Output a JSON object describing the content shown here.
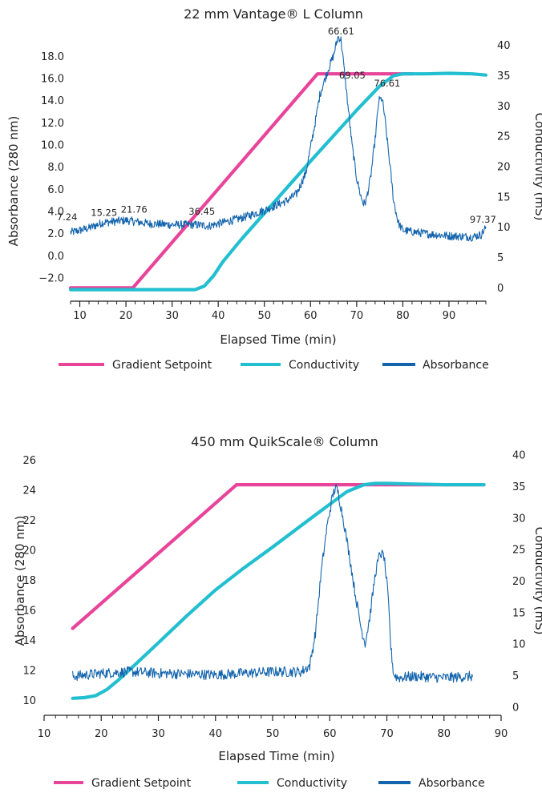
{
  "legend": {
    "gradient": "Gradient Setpoint",
    "conductivity": "Conductivity",
    "absorbance": "Absorbance"
  },
  "colors": {
    "gradient": "#e8449a",
    "conductivity": "#22bfd0",
    "absorbance": "#1464ad"
  },
  "chart_data": [
    {
      "type": "line",
      "title": "22 mm Vantage® L Column",
      "xlabel": "Elapsed Time (min)",
      "ylabel": "Absorbance (280 nm)",
      "y2label": "Conductivity (mS)",
      "xlim": [
        8,
        98
      ],
      "ylim": [
        -4.1,
        20.2
      ],
      "y2lim": [
        -2.2,
        42.2
      ],
      "xticks": [
        "10",
        "20",
        "30",
        "40",
        "50",
        "60",
        "70",
        "80",
        "90"
      ],
      "xtick_values": [
        10,
        20,
        30,
        40,
        50,
        60,
        70,
        80,
        90
      ],
      "yticks": [
        "−2.0",
        "0.0",
        "2.0",
        "4.0",
        "6.0",
        "8.0",
        "10.0",
        "12.0",
        "14.0",
        "16.0",
        "18.0"
      ],
      "ytick_values": [
        -2,
        0,
        2,
        4,
        6,
        8,
        10,
        12,
        14,
        16,
        18
      ],
      "y2ticks": [
        "0",
        "5",
        "10",
        "15",
        "20",
        "25",
        "30",
        "35",
        "40"
      ],
      "y2tick_values": [
        0,
        5,
        10,
        15,
        20,
        25,
        30,
        35,
        40
      ],
      "annotations": [
        {
          "text": "7.24",
          "x": 7.24,
          "y": 3.2
        },
        {
          "text": "15.25",
          "x": 15.25,
          "y": 3.6
        },
        {
          "text": "21.76",
          "x": 21.76,
          "y": 3.9
        },
        {
          "text": "36.45",
          "x": 36.45,
          "y": 3.7
        },
        {
          "text": "66.61",
          "x": 66.61,
          "y": 20.0
        },
        {
          "text": "69.05",
          "x": 69.05,
          "y": 16.0
        },
        {
          "text": "76.61",
          "x": 76.61,
          "y": 15.3
        },
        {
          "text": "97.37",
          "x": 97.37,
          "y": 3.0
        }
      ],
      "series": [
        {
          "name": "Gradient Setpoint",
          "axis": "y2",
          "color_key": "gradient",
          "x": [
            8,
            21.5,
            61.5,
            82
          ],
          "y": [
            0,
            0,
            35.3,
            35.3
          ]
        },
        {
          "name": "Conductivity",
          "axis": "y2",
          "color_key": "conductivity",
          "x": [
            8,
            35,
            37,
            39,
            41,
            45,
            50,
            55,
            60,
            65,
            70,
            75,
            78,
            80,
            82,
            85,
            90,
            95,
            98
          ],
          "y": [
            -0.3,
            -0.3,
            0.3,
            2.0,
            4.3,
            8.0,
            12.3,
            16.6,
            20.9,
            25.1,
            29.3,
            33.3,
            35.0,
            35.3,
            35.3,
            35.3,
            35.4,
            35.3,
            35.1
          ]
        },
        {
          "name": "Absorbance",
          "axis": "y",
          "color_key": "absorbance",
          "noise": 0.38,
          "x": [
            8,
            12,
            15,
            20,
            25,
            30,
            35,
            38,
            40,
            45,
            50,
            55,
            57,
            59,
            61,
            62,
            63,
            64,
            65,
            65.5,
            66,
            66.6,
            67,
            68,
            69,
            70,
            71,
            71.5,
            72,
            73,
            74,
            74.8,
            75.5,
            76,
            77,
            78,
            79,
            80,
            85,
            90,
            95,
            97,
            98
          ],
          "y": [
            2.1,
            2.5,
            3.0,
            3.2,
            2.9,
            2.8,
            2.8,
            2.7,
            2.9,
            3.4,
            4.1,
            5.0,
            5.6,
            7.5,
            12.0,
            14.5,
            15.8,
            17.0,
            18.1,
            19.0,
            19.8,
            19.5,
            18.0,
            14.0,
            10.0,
            7.0,
            5.2,
            4.7,
            4.9,
            7.0,
            10.5,
            14.0,
            14.2,
            12.8,
            9.0,
            5.0,
            3.0,
            2.3,
            2.0,
            1.8,
            1.7,
            1.9,
            2.6
          ]
        }
      ]
    },
    {
      "type": "line",
      "title": "450 mm QuikScale® Column",
      "xlabel": "Elapsed Time (min)",
      "ylabel": "Absorbance (280 nm)",
      "y2label": "Conductivity (mS)",
      "xlim": [
        10,
        90
      ],
      "ylim": [
        9,
        26.5
      ],
      "y2lim": [
        -1.3,
        40.4
      ],
      "xticks": [
        "10",
        "20",
        "30",
        "40",
        "50",
        "60",
        "70",
        "80",
        "90"
      ],
      "xtick_values": [
        10,
        20,
        30,
        40,
        50,
        60,
        70,
        80,
        90
      ],
      "yticks": [
        "10",
        "12",
        "14",
        "16",
        "18",
        "20",
        "22",
        "24",
        "26"
      ],
      "ytick_values": [
        10,
        12,
        14,
        16,
        18,
        20,
        22,
        24,
        26
      ],
      "y2ticks": [
        "0",
        "5",
        "10",
        "15",
        "20",
        "25",
        "30",
        "35",
        "40"
      ],
      "y2tick_values": [
        0,
        5,
        10,
        15,
        20,
        25,
        30,
        35,
        40
      ],
      "annotations": [],
      "series": [
        {
          "name": "Gradient Setpoint",
          "axis": "y2",
          "color_key": "gradient",
          "x": [
            15,
            43.7,
            87
          ],
          "y": [
            12.5,
            35.3,
            35.3
          ]
        },
        {
          "name": "Conductivity",
          "axis": "y2",
          "color_key": "conductivity",
          "x": [
            15,
            17,
            19,
            21,
            23,
            26,
            30,
            35,
            40,
            45,
            50,
            55,
            60,
            63,
            66,
            68,
            70,
            75,
            80,
            87
          ],
          "y": [
            1.4,
            1.5,
            1.8,
            2.8,
            4.3,
            6.8,
            10.2,
            14.5,
            18.6,
            22.1,
            25.4,
            28.8,
            32.2,
            34.2,
            35.3,
            35.5,
            35.5,
            35.4,
            35.3,
            35.3
          ]
        },
        {
          "name": "Absorbance",
          "axis": "y",
          "color_key": "absorbance",
          "noise": 0.35,
          "x": [
            15,
            20,
            25,
            30,
            40,
            50,
            55,
            56.5,
            57.5,
            58.5,
            59.5,
            60.5,
            61,
            61.5,
            62.5,
            63.5,
            64.5,
            65.5,
            66.2,
            67,
            68,
            68.8,
            69.5,
            70.2,
            70.7,
            71.2,
            72,
            75,
            80,
            85
          ],
          "y": [
            11.6,
            11.8,
            11.9,
            11.8,
            11.7,
            11.9,
            11.9,
            12.3,
            14.5,
            18.5,
            21.5,
            23.6,
            24.2,
            23.8,
            21.8,
            19.5,
            17.0,
            14.8,
            13.8,
            15.5,
            18.5,
            19.8,
            19.6,
            17.0,
            13.5,
            11.7,
            11.5,
            11.6,
            11.5,
            11.6
          ]
        }
      ]
    }
  ]
}
